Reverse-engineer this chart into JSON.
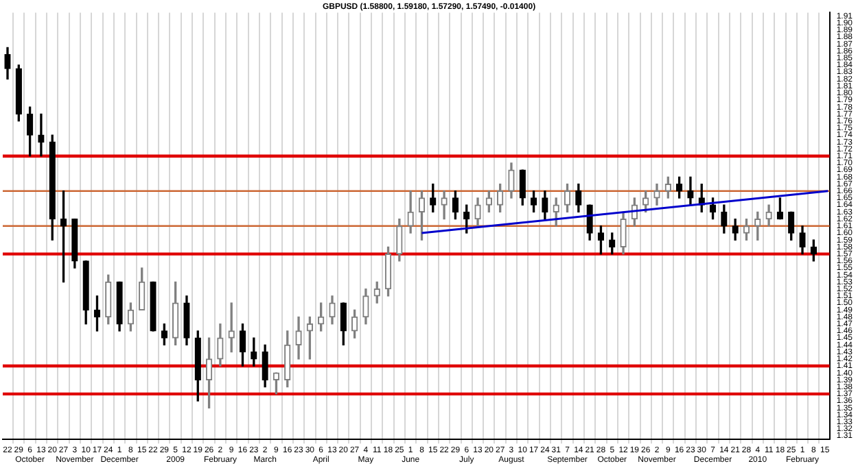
{
  "chart_data": {
    "type": "candlestick",
    "title": "GBPUSD (1.58800, 1.59180, 1.57290, 1.57490, -0.01400)",
    "series": [
      {
        "colors": [
          "#000000",
          "#000000",
          "#000000",
          "#000000",
          "#000000",
          "#000000",
          "#000000",
          "#000000",
          "#000000",
          "#808080",
          "#000000",
          "#808080",
          "#808080",
          "#000000",
          "#000000",
          "#808080",
          "#000000",
          "#000000",
          "#808080",
          "#808080",
          "#808080",
          "#000000",
          "#000000",
          "#000000",
          "#808080",
          "#808080",
          "#808080",
          "#808080",
          "#808080",
          "#808080",
          "#000000",
          "#808080",
          "#808080",
          "#808080",
          "#808080",
          "#808080",
          "#808080",
          "#808080",
          "#000000",
          "#808080",
          "#000000",
          "#000000",
          "#808080",
          "#808080",
          "#808080",
          "#808080",
          "#000000",
          "#000000",
          "#000000",
          "#808080",
          "#808080",
          "#000000",
          "#000000",
          "#000000",
          "#000000",
          "#808080",
          "#808080",
          "#808080",
          "#808080",
          "#808080",
          "#000000",
          "#000000",
          "#000000",
          "#000000",
          "#000000",
          "#000000",
          "#808080",
          "#808080",
          "#808080",
          "#000000",
          "#000000",
          "#000000",
          "#000000"
        ],
        "x": [
          "2008-09-22",
          "2008-09-29",
          "2008-10-06",
          "2008-10-13",
          "2008-10-20",
          "2008-10-27",
          "2008-11-03",
          "2008-11-10",
          "2008-11-17",
          "2008-11-24",
          "2008-12-01",
          "2008-12-08",
          "2008-12-15",
          "2008-12-22",
          "2008-12-29",
          "2009-01-05",
          "2009-01-12",
          "2009-01-19",
          "2009-01-26",
          "2009-02-02",
          "2009-02-09",
          "2009-02-16",
          "2009-02-23",
          "2009-03-02",
          "2009-03-09",
          "2009-03-16",
          "2009-03-23",
          "2009-03-30",
          "2009-04-06",
          "2009-04-13",
          "2009-04-20",
          "2009-04-27",
          "2009-05-04",
          "2009-05-11",
          "2009-05-18",
          "2009-05-25",
          "2009-06-01",
          "2009-06-08",
          "2009-06-15",
          "2009-06-22",
          "2009-06-29",
          "2009-07-06",
          "2009-07-13",
          "2009-07-20",
          "2009-07-27",
          "2009-08-03",
          "2009-08-10",
          "2009-08-17",
          "2009-08-24",
          "2009-08-31",
          "2009-09-07",
          "2009-09-14",
          "2009-09-21",
          "2009-09-28",
          "2009-10-05",
          "2009-10-12",
          "2009-10-19",
          "2009-10-26",
          "2009-11-02",
          "2009-11-09",
          "2009-11-16",
          "2009-11-23",
          "2009-11-30",
          "2009-12-07",
          "2009-12-14",
          "2009-12-21",
          "2009-12-28",
          "2010-01-04",
          "2010-01-11",
          "2010-01-18",
          "2010-01-25",
          "2010-02-01",
          "2010-02-08"
        ],
        "ohlc": [
          [
            1.855,
            1.865,
            1.82,
            1.835
          ],
          [
            1.835,
            1.84,
            1.76,
            1.77
          ],
          [
            1.77,
            1.78,
            1.71,
            1.74
          ],
          [
            1.74,
            1.77,
            1.71,
            1.73
          ],
          [
            1.73,
            1.74,
            1.59,
            1.62
          ],
          [
            1.62,
            1.66,
            1.53,
            1.61
          ],
          [
            1.62,
            1.62,
            1.55,
            1.56
          ],
          [
            1.56,
            1.56,
            1.47,
            1.49
          ],
          [
            1.49,
            1.51,
            1.46,
            1.48
          ],
          [
            1.48,
            1.54,
            1.47,
            1.53
          ],
          [
            1.53,
            1.53,
            1.46,
            1.47
          ],
          [
            1.47,
            1.5,
            1.46,
            1.49
          ],
          [
            1.49,
            1.55,
            1.49,
            1.53
          ],
          [
            1.53,
            1.53,
            1.46,
            1.46
          ],
          [
            1.46,
            1.47,
            1.44,
            1.45
          ],
          [
            1.45,
            1.53,
            1.44,
            1.5
          ],
          [
            1.5,
            1.51,
            1.44,
            1.45
          ],
          [
            1.45,
            1.46,
            1.36,
            1.39
          ],
          [
            1.39,
            1.45,
            1.35,
            1.42
          ],
          [
            1.42,
            1.47,
            1.41,
            1.45
          ],
          [
            1.45,
            1.5,
            1.43,
            1.46
          ],
          [
            1.46,
            1.47,
            1.41,
            1.43
          ],
          [
            1.43,
            1.45,
            1.41,
            1.42
          ],
          [
            1.43,
            1.44,
            1.38,
            1.39
          ],
          [
            1.39,
            1.4,
            1.37,
            1.4
          ],
          [
            1.39,
            1.46,
            1.38,
            1.44
          ],
          [
            1.44,
            1.48,
            1.42,
            1.46
          ],
          [
            1.46,
            1.48,
            1.42,
            1.47
          ],
          [
            1.47,
            1.5,
            1.46,
            1.48
          ],
          [
            1.48,
            1.51,
            1.47,
            1.5
          ],
          [
            1.5,
            1.5,
            1.44,
            1.46
          ],
          [
            1.46,
            1.49,
            1.45,
            1.48
          ],
          [
            1.48,
            1.52,
            1.47,
            1.51
          ],
          [
            1.51,
            1.53,
            1.5,
            1.52
          ],
          [
            1.52,
            1.58,
            1.51,
            1.57
          ],
          [
            1.57,
            1.62,
            1.56,
            1.61
          ],
          [
            1.61,
            1.66,
            1.6,
            1.63
          ],
          [
            1.63,
            1.66,
            1.59,
            1.65
          ],
          [
            1.65,
            1.67,
            1.63,
            1.64
          ],
          [
            1.64,
            1.66,
            1.62,
            1.65
          ],
          [
            1.65,
            1.66,
            1.62,
            1.63
          ],
          [
            1.63,
            1.64,
            1.6,
            1.62
          ],
          [
            1.62,
            1.65,
            1.61,
            1.64
          ],
          [
            1.64,
            1.66,
            1.63,
            1.65
          ],
          [
            1.64,
            1.67,
            1.63,
            1.66
          ],
          [
            1.66,
            1.7,
            1.65,
            1.69
          ],
          [
            1.69,
            1.69,
            1.64,
            1.65
          ],
          [
            1.65,
            1.66,
            1.63,
            1.64
          ],
          [
            1.65,
            1.66,
            1.62,
            1.63
          ],
          [
            1.63,
            1.65,
            1.61,
            1.64
          ],
          [
            1.64,
            1.67,
            1.63,
            1.66
          ],
          [
            1.66,
            1.67,
            1.63,
            1.64
          ],
          [
            1.64,
            1.64,
            1.59,
            1.6
          ],
          [
            1.6,
            1.61,
            1.57,
            1.59
          ],
          [
            1.59,
            1.6,
            1.57,
            1.58
          ],
          [
            1.58,
            1.63,
            1.57,
            1.62
          ],
          [
            1.62,
            1.65,
            1.61,
            1.64
          ],
          [
            1.64,
            1.66,
            1.63,
            1.65
          ],
          [
            1.65,
            1.67,
            1.64,
            1.66
          ],
          [
            1.66,
            1.68,
            1.65,
            1.67
          ],
          [
            1.67,
            1.68,
            1.65,
            1.66
          ],
          [
            1.66,
            1.68,
            1.64,
            1.65
          ],
          [
            1.65,
            1.67,
            1.63,
            1.64
          ],
          [
            1.64,
            1.65,
            1.62,
            1.63
          ],
          [
            1.63,
            1.64,
            1.6,
            1.61
          ],
          [
            1.61,
            1.62,
            1.59,
            1.6
          ],
          [
            1.6,
            1.62,
            1.59,
            1.61
          ],
          [
            1.61,
            1.63,
            1.59,
            1.62
          ],
          [
            1.62,
            1.64,
            1.61,
            1.63
          ],
          [
            1.63,
            1.65,
            1.62,
            1.62
          ],
          [
            1.63,
            1.63,
            1.59,
            1.6
          ],
          [
            1.6,
            1.61,
            1.57,
            1.58
          ],
          [
            1.58,
            1.59,
            1.56,
            1.57
          ]
        ]
      },
      {
        "type": "line",
        "color": "#0000cc",
        "x": [
          "2009-06-08",
          "2010-02-17"
        ],
        "values": [
          1.6,
          1.66
        ]
      }
    ],
    "ref_lines": [
      {
        "axis": "y",
        "value": 1.71,
        "color": "#e00000"
      },
      {
        "axis": "y",
        "value": 1.66,
        "color": "#cc6633"
      },
      {
        "axis": "y",
        "value": 1.61,
        "color": "#cc6633"
      },
      {
        "axis": "y",
        "value": 1.57,
        "color": "#e00000"
      },
      {
        "axis": "y",
        "value": 1.41,
        "color": "#e00000"
      },
      {
        "axis": "y",
        "value": 1.37,
        "color": "#e00000"
      }
    ],
    "xlim": [
      "2008-09-19",
      "2010-02-18"
    ],
    "xticks": [
      {
        "value": "2008-09-22",
        "label": "22"
      },
      {
        "value": "2008-09-29",
        "label": "29"
      },
      {
        "value": "2008-10-06",
        "label": "6\nOctober"
      },
      {
        "value": "2008-10-13",
        "label": "13"
      },
      {
        "value": "2008-10-20",
        "label": "20"
      },
      {
        "value": "2008-10-27",
        "label": "27"
      },
      {
        "value": "2008-11-03",
        "label": "3\nNovember"
      },
      {
        "value": "2008-11-10",
        "label": "10"
      },
      {
        "value": "2008-11-17",
        "label": "17"
      },
      {
        "value": "2008-11-24",
        "label": "24"
      },
      {
        "value": "2008-12-01",
        "label": "1\nDecember"
      },
      {
        "value": "2008-12-08",
        "label": "8"
      },
      {
        "value": "2008-12-15",
        "label": "15"
      },
      {
        "value": "2008-12-22",
        "label": "22"
      },
      {
        "value": "2008-12-29",
        "label": "29"
      },
      {
        "value": "2009-01-05",
        "label": "5\n2009"
      },
      {
        "value": "2009-01-12",
        "label": "12"
      },
      {
        "value": "2009-01-19",
        "label": "19"
      },
      {
        "value": "2009-01-26",
        "label": "26"
      },
      {
        "value": "2009-02-02",
        "label": "2\nFebruary"
      },
      {
        "value": "2009-02-09",
        "label": "9"
      },
      {
        "value": "2009-02-16",
        "label": "16"
      },
      {
        "value": "2009-02-23",
        "label": "23"
      },
      {
        "value": "2009-03-02",
        "label": "2\nMarch"
      },
      {
        "value": "2009-03-09",
        "label": "9"
      },
      {
        "value": "2009-03-16",
        "label": "16"
      },
      {
        "value": "2009-03-23",
        "label": "23"
      },
      {
        "value": "2009-03-30",
        "label": "30"
      },
      {
        "value": "2009-04-06",
        "label": "6\nApril"
      },
      {
        "value": "2009-04-13",
        "label": "13"
      },
      {
        "value": "2009-04-20",
        "label": "20"
      },
      {
        "value": "2009-04-27",
        "label": "27"
      },
      {
        "value": "2009-05-04",
        "label": "4\nMay"
      },
      {
        "value": "2009-05-11",
        "label": "11"
      },
      {
        "value": "2009-05-18",
        "label": "18"
      },
      {
        "value": "2009-05-25",
        "label": "25"
      },
      {
        "value": "2009-06-01",
        "label": "1\nJune"
      },
      {
        "value": "2009-06-08",
        "label": "8"
      },
      {
        "value": "2009-06-15",
        "label": "15"
      },
      {
        "value": "2009-06-22",
        "label": "22"
      },
      {
        "value": "2009-06-29",
        "label": "29"
      },
      {
        "value": "2009-07-06",
        "label": "6\nJuly"
      },
      {
        "value": "2009-07-13",
        "label": "13"
      },
      {
        "value": "2009-07-20",
        "label": "20"
      },
      {
        "value": "2009-07-27",
        "label": "27"
      },
      {
        "value": "2009-08-03",
        "label": "3\nAugust"
      },
      {
        "value": "2009-08-10",
        "label": "10"
      },
      {
        "value": "2009-08-17",
        "label": "17"
      },
      {
        "value": "2009-08-24",
        "label": "24"
      },
      {
        "value": "2009-08-31",
        "label": "31"
      },
      {
        "value": "2009-09-07",
        "label": "7\nSeptember"
      },
      {
        "value": "2009-09-14",
        "label": "14"
      },
      {
        "value": "2009-09-21",
        "label": "21"
      },
      {
        "value": "2009-09-28",
        "label": "28"
      },
      {
        "value": "2009-10-05",
        "label": "5\nOctober"
      },
      {
        "value": "2009-10-12",
        "label": "12"
      },
      {
        "value": "2009-10-19",
        "label": "19"
      },
      {
        "value": "2009-10-26",
        "label": "26"
      },
      {
        "value": "2009-11-02",
        "label": "2\nNovember"
      },
      {
        "value": "2009-11-09",
        "label": "9"
      },
      {
        "value": "2009-11-16",
        "label": "16"
      },
      {
        "value": "2009-11-23",
        "label": "23"
      },
      {
        "value": "2009-11-30",
        "label": "30"
      },
      {
        "value": "2009-12-07",
        "label": "7\nDecember"
      },
      {
        "value": "2009-12-14",
        "label": "14"
      },
      {
        "value": "2009-12-21",
        "label": "21"
      },
      {
        "value": "2009-12-28",
        "label": "28"
      },
      {
        "value": "2010-01-04",
        "label": "4\n2010"
      },
      {
        "value": "2010-01-11",
        "label": "11"
      },
      {
        "value": "2010-01-18",
        "label": "18"
      },
      {
        "value": "2010-01-25",
        "label": "25"
      },
      {
        "value": "2010-02-01",
        "label": "1\nFebruary"
      },
      {
        "value": "2010-02-08",
        "label": "8"
      },
      {
        "value": "2010-02-15",
        "label": "15"
      }
    ],
    "ylim": [
      1.305,
      1.915
    ],
    "yticks": [
      1.31,
      1.32,
      1.33,
      1.34,
      1.35,
      1.36,
      1.37,
      1.38,
      1.39,
      {
        "value": 1.4,
        "label": "1.40"
      },
      1.41,
      1.42,
      1.43,
      1.44,
      1.45,
      1.46,
      1.47,
      1.48,
      1.49,
      {
        "value": 1.5,
        "label": "1.50"
      },
      1.51,
      1.52,
      1.53,
      1.54,
      1.55,
      1.56,
      1.57,
      1.58,
      1.59,
      {
        "value": 1.6,
        "label": "1.60"
      },
      1.61,
      1.62,
      1.63,
      1.64,
      1.65,
      1.66,
      1.67,
      1.68,
      1.69,
      {
        "value": 1.7,
        "label": "1.70"
      },
      1.71,
      1.72,
      1.73,
      1.74,
      1.75,
      1.76,
      1.77,
      1.78,
      1.79,
      {
        "value": 1.8,
        "label": "1.80"
      },
      1.81,
      1.82,
      1.83,
      1.84,
      1.85,
      1.86,
      1.87,
      1.88,
      1.89,
      {
        "value": 1.9,
        "label": "1.90"
      },
      1.91
    ],
    "grid": "x"
  }
}
